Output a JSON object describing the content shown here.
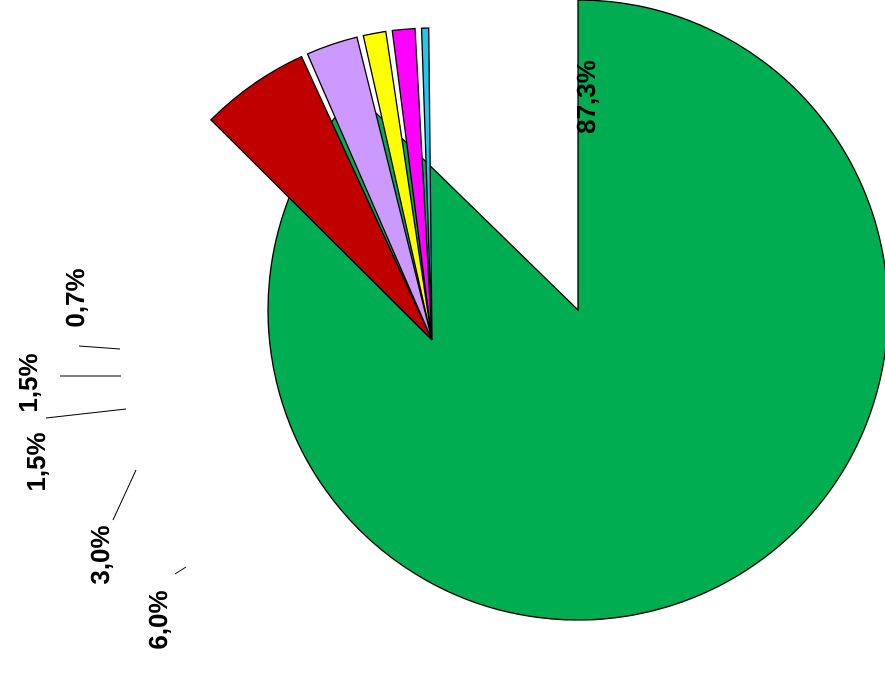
{
  "chart_data": {
    "type": "pie",
    "title": "",
    "legend": "none",
    "slices": [
      {
        "value": 87.3,
        "label": "87,3%",
        "color": "#00AD50"
      },
      {
        "value": 6.0,
        "label": "6,0%",
        "color": "#C00000"
      },
      {
        "value": 3.0,
        "label": "3,0%",
        "color": "#CC99FF"
      },
      {
        "value": 1.5,
        "label": "1,5%",
        "color": "#FFFF00"
      },
      {
        "value": 1.5,
        "label": "1,5%",
        "color": "#FF00FF"
      },
      {
        "value": 0.7,
        "label": "0,7%",
        "color": "#1EC8F0"
      }
    ]
  }
}
